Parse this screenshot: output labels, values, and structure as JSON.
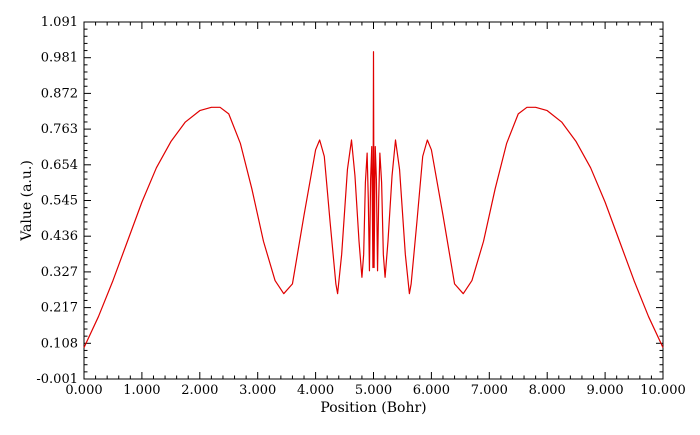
{
  "chart_data": {
    "type": "line",
    "title": "",
    "xlabel": "Position (Bohr)",
    "ylabel": "Value (a.u.)",
    "xlim": [
      0,
      10
    ],
    "ylim": [
      -0.001,
      1.091
    ],
    "grid": false,
    "x_ticks": [
      "0.000",
      "1.000",
      "2.000",
      "3.000",
      "4.000",
      "5.000",
      "6.000",
      "7.000",
      "8.000",
      "9.000",
      "10.000"
    ],
    "y_ticks": [
      "-0.001",
      "0.108",
      "0.217",
      "0.327",
      "0.436",
      "0.545",
      "0.654",
      "0.763",
      "0.872",
      "0.981",
      "1.091"
    ],
    "series": [
      {
        "color": "#e00000",
        "x": [
          0,
          0.25,
          0.5,
          0.75,
          1.0,
          1.25,
          1.5,
          1.75,
          2.0,
          2.2,
          2.35,
          2.5,
          2.7,
          2.9,
          3.1,
          3.3,
          3.45,
          3.6,
          3.8,
          4.0,
          4.07,
          4.15,
          4.25,
          4.35,
          4.38,
          4.45,
          4.55,
          4.62,
          4.68,
          4.75,
          4.8,
          4.83,
          4.86,
          4.89,
          4.91,
          4.93,
          4.95,
          4.97,
          4.99,
          5.0,
          5.01,
          5.03,
          5.05,
          5.07,
          5.09,
          5.11,
          5.14,
          5.17,
          5.2,
          5.25,
          5.32,
          5.38,
          5.45,
          5.55,
          5.62,
          5.65,
          5.75,
          5.85,
          5.93,
          6.0,
          6.2,
          6.4,
          6.55,
          6.7,
          6.9,
          7.1,
          7.3,
          7.5,
          7.65,
          7.8,
          8.0,
          8.25,
          8.5,
          8.75,
          9.0,
          9.25,
          9.5,
          9.75,
          10.0
        ],
        "y": [
          0.095,
          0.19,
          0.3,
          0.42,
          0.54,
          0.645,
          0.725,
          0.785,
          0.82,
          0.83,
          0.83,
          0.81,
          0.72,
          0.58,
          0.42,
          0.3,
          0.26,
          0.29,
          0.5,
          0.7,
          0.73,
          0.68,
          0.48,
          0.29,
          0.26,
          0.38,
          0.64,
          0.73,
          0.62,
          0.42,
          0.31,
          0.38,
          0.6,
          0.69,
          0.55,
          0.33,
          0.61,
          0.71,
          0.34,
          1.0,
          0.34,
          0.71,
          0.61,
          0.33,
          0.55,
          0.69,
          0.6,
          0.38,
          0.31,
          0.42,
          0.62,
          0.73,
          0.64,
          0.38,
          0.26,
          0.29,
          0.48,
          0.68,
          0.73,
          0.7,
          0.5,
          0.29,
          0.26,
          0.3,
          0.42,
          0.58,
          0.72,
          0.81,
          0.83,
          0.83,
          0.82,
          0.785,
          0.725,
          0.645,
          0.54,
          0.42,
          0.3,
          0.19,
          0.095
        ]
      }
    ]
  }
}
